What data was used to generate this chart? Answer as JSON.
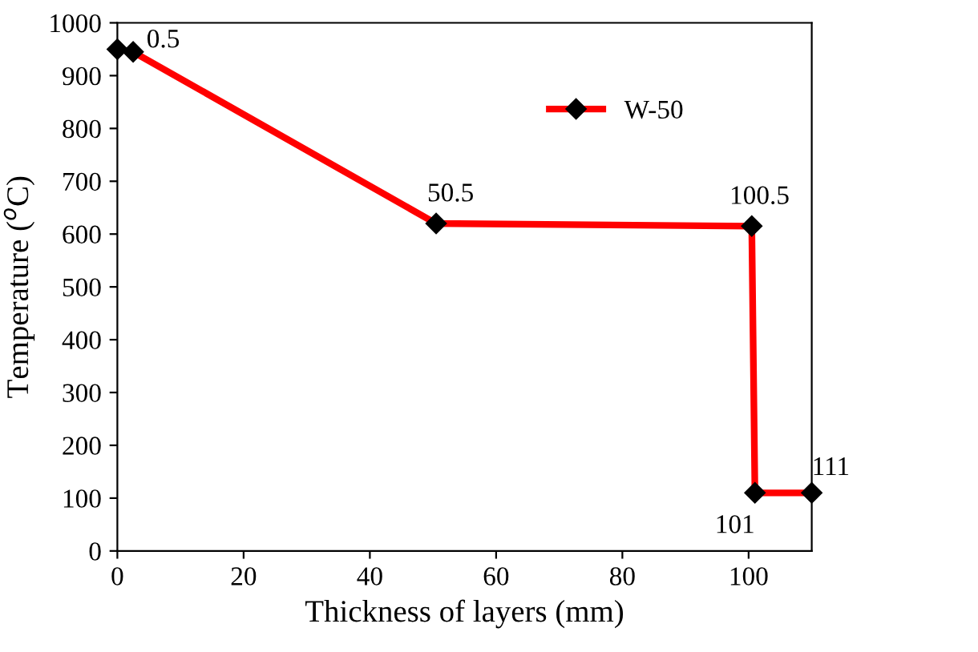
{
  "chart_data": {
    "type": "line",
    "xlabel": "Thickness of layers (mm)",
    "ylabel": "Temperature ($^{o}$C)",
    "x": [
      0,
      2.5,
      50.5,
      100.5,
      101,
      110
    ],
    "series": [
      {
        "name": "W-50",
        "color": "#ff0000",
        "values": [
          950,
          945,
          620,
          615,
          110,
          110
        ]
      }
    ],
    "xlim": [
      0,
      110
    ],
    "ylim": [
      0,
      1000
    ],
    "xticks": [
      0,
      20,
      40,
      60,
      80,
      100
    ],
    "yticks": [
      0,
      100,
      200,
      300,
      400,
      500,
      600,
      700,
      800,
      900,
      1000
    ],
    "marker": "diamond",
    "line_style": "solid",
    "grid": false,
    "legend": "top right",
    "annotations": [
      {
        "text": "0.5",
        "x": 2.5,
        "y": 945
      },
      {
        "text": "50.5",
        "x": 50.5,
        "y": 620
      },
      {
        "text": "100.5",
        "x": 100.5,
        "y": 615
      },
      {
        "text": "101",
        "x": 101,
        "y": 110
      },
      {
        "text": "111",
        "x": 110,
        "y": 110
      }
    ]
  }
}
